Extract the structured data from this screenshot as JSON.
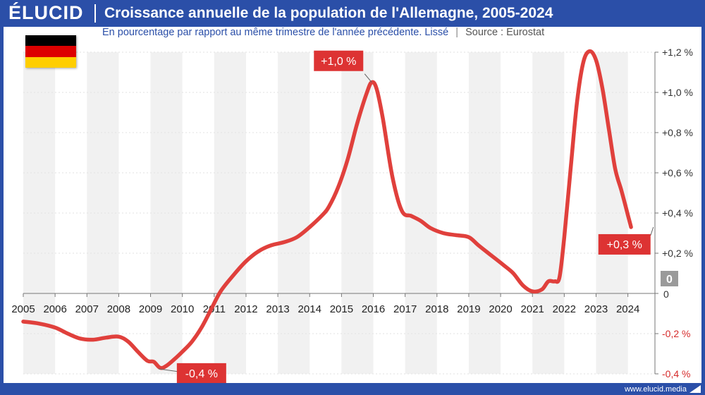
{
  "header": {
    "logo": "ÉLUCID",
    "title": "Croissance annuelle de la population de l'Allemagne, 2005-2024"
  },
  "subtitle": {
    "text": "En pourcentage par rapport au même trimestre de l'année précédente. Lissé",
    "separator": "|",
    "source": "Source : Eurostat"
  },
  "footer": {
    "url": "www.elucid.media"
  },
  "colors": {
    "brand": "#2b4fa8",
    "series": "#e0403c",
    "negative_tick": "#d62b2b",
    "flag_black": "#000000",
    "flag_red": "#dd0000",
    "flag_gold": "#ffce00"
  },
  "chart_data": {
    "type": "line",
    "x_tick_labels": [
      "2005",
      "2006",
      "2007",
      "2008",
      "2009",
      "2010",
      "2011",
      "2012",
      "2013",
      "2014",
      "2015",
      "2016",
      "2017",
      "2018",
      "2019",
      "2020",
      "2021",
      "2022",
      "2023",
      "2024"
    ],
    "y_tick_labels": [
      "+1,2 %",
      "+1,0 %",
      "+0,8 %",
      "+0,6 %",
      "+0,4 %",
      "+0,2 %",
      "0",
      "-0,2 %",
      "-0,4 %"
    ],
    "y_ticks": [
      1.2,
      1.0,
      0.8,
      0.6,
      0.4,
      0.2,
      0,
      -0.2,
      -0.4
    ],
    "ylim": [
      -0.4,
      1.2
    ],
    "xlim": [
      2005,
      2024.85
    ],
    "zero_badge": "0",
    "annotations": [
      {
        "text": "+1,0 %",
        "x": 2015.95,
        "y": 1.05
      },
      {
        "text": "-0,4 %",
        "x": 2009.25,
        "y": -0.375
      },
      {
        "text": "+0,3 %",
        "x": 2024.8,
        "y": 0.33
      }
    ],
    "series": [
      {
        "points": [
          [
            2005.0,
            -0.14
          ],
          [
            2005.5,
            -0.15
          ],
          [
            2006.0,
            -0.17
          ],
          [
            2006.4,
            -0.2
          ],
          [
            2006.8,
            -0.225
          ],
          [
            2007.2,
            -0.23
          ],
          [
            2007.6,
            -0.22
          ],
          [
            2008.0,
            -0.215
          ],
          [
            2008.3,
            -0.24
          ],
          [
            2008.6,
            -0.29
          ],
          [
            2008.9,
            -0.335
          ],
          [
            2009.1,
            -0.34
          ],
          [
            2009.3,
            -0.37
          ],
          [
            2009.5,
            -0.36
          ],
          [
            2009.8,
            -0.32
          ],
          [
            2010.0,
            -0.29
          ],
          [
            2010.3,
            -0.24
          ],
          [
            2010.6,
            -0.17
          ],
          [
            2010.9,
            -0.08
          ],
          [
            2011.2,
            0.01
          ],
          [
            2011.6,
            0.09
          ],
          [
            2012.0,
            0.16
          ],
          [
            2012.4,
            0.21
          ],
          [
            2012.8,
            0.24
          ],
          [
            2013.2,
            0.255
          ],
          [
            2013.6,
            0.28
          ],
          [
            2014.0,
            0.33
          ],
          [
            2014.4,
            0.39
          ],
          [
            2014.6,
            0.43
          ],
          [
            2014.9,
            0.53
          ],
          [
            2015.2,
            0.67
          ],
          [
            2015.5,
            0.85
          ],
          [
            2015.8,
            1.0
          ],
          [
            2015.95,
            1.05
          ],
          [
            2016.1,
            1.02
          ],
          [
            2016.3,
            0.87
          ],
          [
            2016.6,
            0.58
          ],
          [
            2016.9,
            0.41
          ],
          [
            2017.2,
            0.385
          ],
          [
            2017.5,
            0.36
          ],
          [
            2017.8,
            0.325
          ],
          [
            2018.2,
            0.3
          ],
          [
            2018.6,
            0.29
          ],
          [
            2019.0,
            0.28
          ],
          [
            2019.3,
            0.24
          ],
          [
            2019.7,
            0.19
          ],
          [
            2020.1,
            0.14
          ],
          [
            2020.4,
            0.1
          ],
          [
            2020.7,
            0.04
          ],
          [
            2021.0,
            0.01
          ],
          [
            2021.3,
            0.02
          ],
          [
            2021.5,
            0.06
          ],
          [
            2021.7,
            0.06
          ],
          [
            2021.85,
            0.08
          ],
          [
            2022.0,
            0.28
          ],
          [
            2022.2,
            0.62
          ],
          [
            2022.4,
            0.95
          ],
          [
            2022.6,
            1.15
          ],
          [
            2022.8,
            1.205
          ],
          [
            2023.0,
            1.16
          ],
          [
            2023.2,
            1.02
          ],
          [
            2023.4,
            0.82
          ],
          [
            2023.6,
            0.62
          ],
          [
            2023.8,
            0.51
          ],
          [
            2024.0,
            0.39
          ],
          [
            2024.1,
            0.33
          ]
        ]
      }
    ]
  }
}
